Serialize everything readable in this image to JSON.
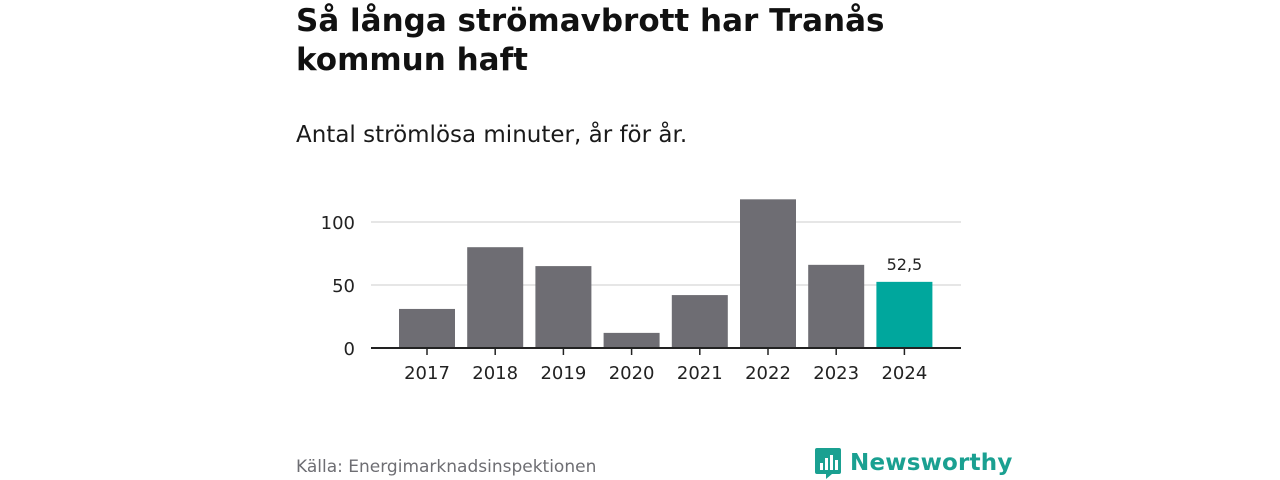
{
  "header": {
    "title": "Så långa strömavbrott har Tranås kommun haft",
    "subtitle": "Antal strömlösa minuter, år för år."
  },
  "footer": {
    "source": "Källa: Energimarknadsinspektionen",
    "brand": "Newsworthy",
    "brand_icon": "newsworthy-logo-icon"
  },
  "colors": {
    "bar": "#6e6d73",
    "highlight": "#00a79d",
    "grid": "#dddddd",
    "axis": "#222222",
    "brand": "#1aa091"
  },
  "chart_data": {
    "type": "bar",
    "title": "Så långa strömavbrott har Tranås kommun haft",
    "subtitle": "Antal strömlösa minuter, år för år.",
    "xlabel": "",
    "ylabel": "",
    "categories": [
      "2017",
      "2018",
      "2019",
      "2020",
      "2021",
      "2022",
      "2023",
      "2024"
    ],
    "values": [
      31,
      80,
      65,
      12,
      42,
      118,
      66,
      52.5
    ],
    "highlight_index": 7,
    "data_labels": [
      {
        "index": 7,
        "text": "52,5"
      }
    ],
    "ylim": [
      0,
      120
    ],
    "yticks": [
      0,
      50,
      100
    ],
    "ytick_labels": [
      "0",
      "50",
      "100"
    ],
    "grid": true
  }
}
